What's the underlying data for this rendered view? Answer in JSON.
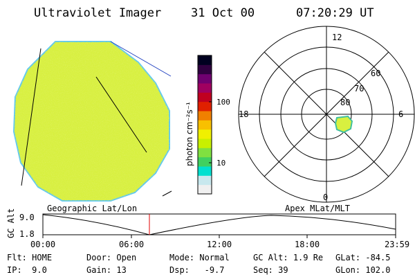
{
  "header": {
    "title": "Ultraviolet Imager",
    "date": "31 Oct 00",
    "time": "07:20:29 UT"
  },
  "colorbar": {
    "unit_label": "photon cm⁻²s⁻¹",
    "ticks": [
      "100",
      "10"
    ],
    "colors": [
      "#f0f0f0",
      "#c8e8ee",
      "#00e0d0",
      "#40d060",
      "#80e040",
      "#c8f000",
      "#f0f000",
      "#f8c000",
      "#f08000",
      "#e02000",
      "#c00020",
      "#a00060",
      "#700070",
      "#300040",
      "#000020"
    ]
  },
  "globe": {
    "fill": "#d8f040",
    "edge": "#60c8f0"
  },
  "polar": {
    "lat_labels": [
      "80",
      "70",
      "60"
    ],
    "mlt_labels": {
      "top": "12",
      "left": "18",
      "right": "6",
      "bottom": "0"
    },
    "spot_color": "#d8f040"
  },
  "timeline": {
    "left_label": "Geographic Lat/Lon",
    "right_label": "Apex MLat/MLT",
    "axis_title": "GC Alt",
    "y_ticks": [
      "9.0",
      "1.8"
    ],
    "x_ticks": [
      "00:00",
      "06:00",
      "12:00",
      "18:00",
      "23:59"
    ],
    "marker_color": "#e00000"
  },
  "status": {
    "row1": [
      {
        "key": "Flt:",
        "value": "HOME"
      },
      {
        "key": "Door:",
        "value": "Open"
      },
      {
        "key": "Mode:",
        "value": "Normal"
      },
      {
        "key": "GC Alt:",
        "value": "1.9 Re"
      },
      {
        "key": "GLat:",
        "value": "-84.5"
      }
    ],
    "row2": [
      {
        "key": "IP:",
        "value": "9.0"
      },
      {
        "key": "Gain:",
        "value": "13"
      },
      {
        "key": "Dsp:",
        "value": "-9.7"
      },
      {
        "key": "Seq:",
        "value": "39"
      },
      {
        "key": "GLon:",
        "value": "102.0"
      }
    ]
  }
}
